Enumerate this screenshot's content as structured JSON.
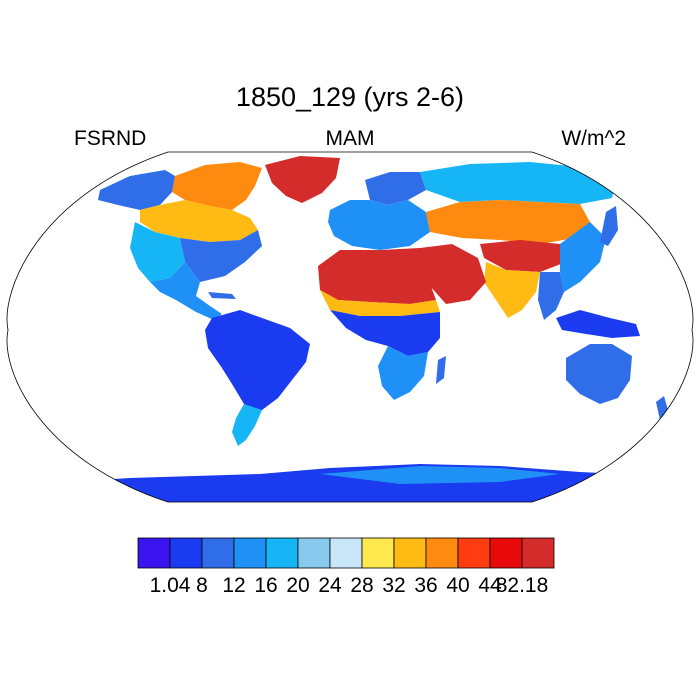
{
  "title": "1850_129 (yrs 2-6)",
  "left_string": "FSRND",
  "center_string": "MAM",
  "right_string": "W/m^2",
  "map": {
    "projection": "Robinson",
    "variable": "FSRND",
    "season": "MAM",
    "units": "W/m^2",
    "ocean_fill": "#ffffff",
    "regions": [
      {
        "name": "greenland",
        "level": 12
      },
      {
        "name": "canada-north",
        "level": 9
      },
      {
        "name": "canada-prairies",
        "level": 8
      },
      {
        "name": "alaska",
        "level": 3
      },
      {
        "name": "usa-west",
        "level": 5
      },
      {
        "name": "usa-east",
        "level": 3
      },
      {
        "name": "mexico",
        "level": 4
      },
      {
        "name": "south-america",
        "level": 2
      },
      {
        "name": "patagonia",
        "level": 4
      },
      {
        "name": "europe",
        "level": 2
      },
      {
        "name": "scandinavia",
        "level": 3
      },
      {
        "name": "siberia",
        "level": 4
      },
      {
        "name": "central-asia",
        "level": 9
      },
      {
        "name": "sahara",
        "level": 12
      },
      {
        "name": "arabia",
        "level": 12
      },
      {
        "name": "tibet",
        "level": 12
      },
      {
        "name": "india",
        "level": 7
      },
      {
        "name": "africa-central",
        "level": 2
      },
      {
        "name": "southern-africa",
        "level": 4
      },
      {
        "name": "australia",
        "level": 3
      },
      {
        "name": "maritime-asia",
        "level": 1
      },
      {
        "name": "antarctica",
        "level": 1
      }
    ]
  },
  "colorbar": {
    "colors": [
      "#3a14f0",
      "#1b3bf0",
      "#2f6ee8",
      "#1f90f5",
      "#16b5f5",
      "#88c9ee",
      "#c7e6f8",
      "#ffe84d",
      "#ffbb14",
      "#ff8a10",
      "#ff3d10",
      "#e80a0a",
      "#d42b2b"
    ],
    "labels": [
      "1.04",
      "8",
      "12",
      "16",
      "20",
      "24",
      "28",
      "32",
      "36",
      "40",
      "44",
      "82.18"
    ]
  }
}
